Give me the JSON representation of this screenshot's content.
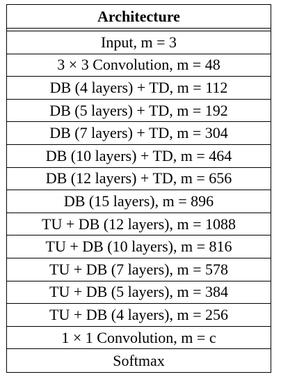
{
  "table": {
    "header": "Architecture",
    "rows": [
      "Input, m = 3",
      "3 × 3 Convolution, m = 48",
      "DB (4 layers) + TD, m = 112",
      "DB (5 layers) + TD, m = 192",
      "DB (7 layers) + TD, m = 304",
      "DB (10 layers) + TD, m = 464",
      "DB (12 layers) + TD, m = 656",
      "DB (15 layers), m = 896",
      "TU + DB (12 layers), m = 1088",
      "TU + DB (10 layers), m = 816",
      "TU + DB (7 layers), m = 578",
      "TU + DB (5 layers), m = 384",
      "TU + DB (4 layers), m = 256",
      "1 × 1 Convolution, m = c",
      "Softmax"
    ]
  }
}
